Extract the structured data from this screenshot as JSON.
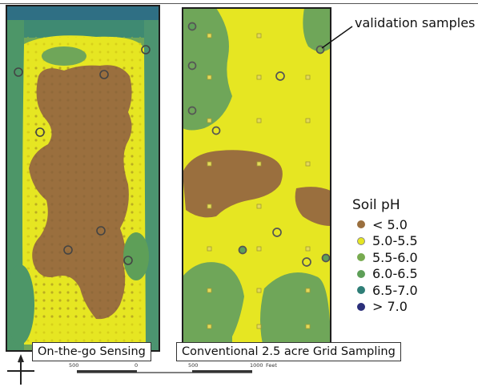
{
  "colors": {
    "lt5": "#9a6f3e",
    "p50_55": "#e6e622",
    "p55_60": "#78ab50",
    "p60_65": "#5e9f58",
    "p65_70": "#2f7e77",
    "gt7": "#2b2f7a",
    "outline": "#1e1e1e"
  },
  "annotation": {
    "text": "validation samples"
  },
  "maps": [
    {
      "caption": "On-the-go Sensing"
    },
    {
      "caption": "Conventional 2.5 acre Grid Sampling"
    }
  ],
  "legend": {
    "title": "Soil pH",
    "items": [
      {
        "label": "< 5.0",
        "color": "#9a6f3e"
      },
      {
        "label": "5.0-5.5",
        "color": "#e6e622"
      },
      {
        "label": "5.5-6.0",
        "color": "#78ab50"
      },
      {
        "label": "6.0-6.5",
        "color": "#5e9f58"
      },
      {
        "label": "6.5-7.0",
        "color": "#2f7e77"
      },
      {
        "label": "> 7.0",
        "color": "#2b2f7a"
      }
    ]
  },
  "scale_bar": {
    "labels": [
      "500",
      "0",
      "500",
      "1000",
      "Feet"
    ]
  },
  "north_arrow": {
    "label": "N"
  }
}
